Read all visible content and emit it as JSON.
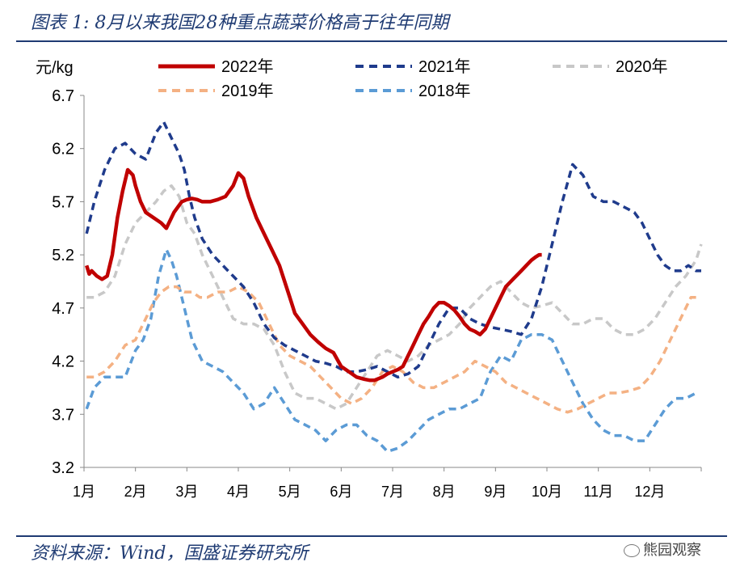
{
  "title": "图表 1:  8月以来我国28种重点蔬菜价格高于往年同期",
  "source": "资料来源：Wind，国盛证券研究所",
  "watermark": "熊园观察",
  "chart_data": {
    "type": "line",
    "ylabel": "元/kg",
    "ylim": [
      3.2,
      6.7
    ],
    "yticks": [
      "6.7",
      "6.2",
      "5.7",
      "5.2",
      "4.7",
      "4.2",
      "3.7",
      "3.2"
    ],
    "xlim": [
      0,
      12
    ],
    "xticks": [
      "1月",
      "2月",
      "3月",
      "4月",
      "5月",
      "6月",
      "7月",
      "8月",
      "9月",
      "10月",
      "11月",
      "12月"
    ],
    "series": [
      {
        "name": "2022年",
        "color": "#c00000",
        "dash": "solid",
        "x": [
          0.05,
          0.1,
          0.15,
          0.25,
          0.35,
          0.45,
          0.55,
          0.65,
          0.75,
          0.85,
          0.95,
          1.0,
          1.1,
          1.2,
          1.35,
          1.5,
          1.6,
          1.75,
          1.9,
          2.0,
          2.1,
          2.2,
          2.3,
          2.45,
          2.6,
          2.75,
          2.9,
          3.0,
          3.1,
          3.2,
          3.35,
          3.5,
          3.65,
          3.8,
          3.9,
          4.0,
          4.1,
          4.25,
          4.4,
          4.55,
          4.7,
          4.85,
          5.0,
          5.15,
          5.3,
          5.45,
          5.55,
          5.65,
          5.8,
          5.9,
          6.0,
          6.1,
          6.2,
          6.3,
          6.4,
          6.5,
          6.6,
          6.7,
          6.8,
          6.9,
          7.0,
          7.1,
          7.2,
          7.3,
          7.4,
          7.5,
          7.6,
          7.7,
          7.8,
          7.9,
          8.0,
          8.1,
          8.2,
          8.3,
          8.4,
          8.5,
          8.6,
          8.7,
          8.78,
          8.85,
          8.9
        ],
        "values": [
          5.1,
          5.02,
          5.05,
          5.0,
          4.97,
          5.0,
          5.2,
          5.55,
          5.8,
          6.0,
          5.95,
          5.85,
          5.7,
          5.6,
          5.55,
          5.5,
          5.45,
          5.6,
          5.7,
          5.72,
          5.73,
          5.72,
          5.7,
          5.7,
          5.72,
          5.75,
          5.85,
          5.97,
          5.92,
          5.75,
          5.55,
          5.4,
          5.25,
          5.1,
          4.95,
          4.8,
          4.65,
          4.55,
          4.45,
          4.38,
          4.32,
          4.28,
          4.15,
          4.1,
          4.05,
          4.03,
          4.02,
          4.02,
          4.05,
          4.08,
          4.1,
          4.12,
          4.15,
          4.25,
          4.35,
          4.45,
          4.55,
          4.62,
          4.7,
          4.75,
          4.75,
          4.72,
          4.68,
          4.62,
          4.55,
          4.5,
          4.48,
          4.45,
          4.5,
          4.6,
          4.7,
          4.8,
          4.9,
          4.95,
          5.0,
          5.05,
          5.1,
          5.15,
          5.18,
          5.2,
          5.2
        ]
      },
      {
        "name": "2021年",
        "color": "#1f3b8c",
        "dash": "dash",
        "x": [
          0.05,
          0.2,
          0.4,
          0.6,
          0.8,
          1.0,
          1.2,
          1.4,
          1.55,
          1.7,
          1.85,
          1.95,
          2.05,
          2.15,
          2.3,
          2.5,
          2.7,
          2.9,
          3.1,
          3.3,
          3.5,
          3.7,
          3.9,
          4.1,
          4.3,
          4.5,
          4.7,
          4.9,
          5.1,
          5.3,
          5.5,
          5.7,
          5.9,
          6.1,
          6.3,
          6.5,
          6.7,
          6.9,
          7.1,
          7.3,
          7.5,
          7.7,
          7.9,
          8.1,
          8.3,
          8.5,
          8.7,
          8.9,
          9.1,
          9.3,
          9.5,
          9.7,
          9.9,
          10.1,
          10.3,
          10.5,
          10.7,
          10.85,
          11.0,
          11.15,
          11.3,
          11.45,
          11.6,
          11.75,
          11.9,
          12.0
        ],
        "values": [
          5.4,
          5.7,
          6.0,
          6.2,
          6.25,
          6.15,
          6.1,
          6.35,
          6.45,
          6.3,
          6.15,
          6.0,
          5.75,
          5.55,
          5.35,
          5.2,
          5.1,
          5.0,
          4.9,
          4.75,
          4.55,
          4.42,
          4.35,
          4.3,
          4.25,
          4.2,
          4.18,
          4.15,
          4.1,
          4.1,
          4.12,
          4.15,
          4.1,
          4.05,
          4.08,
          4.15,
          4.35,
          4.55,
          4.7,
          4.7,
          4.6,
          4.55,
          4.52,
          4.5,
          4.48,
          4.45,
          4.6,
          4.9,
          5.3,
          5.7,
          6.05,
          5.95,
          5.75,
          5.7,
          5.7,
          5.65,
          5.6,
          5.5,
          5.35,
          5.2,
          5.1,
          5.05,
          5.05,
          5.1,
          5.05,
          5.05
        ]
      },
      {
        "name": "2020年",
        "color": "#c8c8c8",
        "dash": "dash",
        "x": [
          0.05,
          0.2,
          0.4,
          0.6,
          0.8,
          1.0,
          1.2,
          1.4,
          1.55,
          1.7,
          1.85,
          2.0,
          2.15,
          2.3,
          2.5,
          2.7,
          2.9,
          3.1,
          3.3,
          3.5,
          3.7,
          3.9,
          4.1,
          4.3,
          4.5,
          4.7,
          4.9,
          5.1,
          5.3,
          5.5,
          5.7,
          5.9,
          6.1,
          6.3,
          6.5,
          6.7,
          6.9,
          7.1,
          7.3,
          7.5,
          7.7,
          7.9,
          8.1,
          8.3,
          8.5,
          8.7,
          8.9,
          9.1,
          9.3,
          9.5,
          9.7,
          9.9,
          10.1,
          10.3,
          10.5,
          10.7,
          10.9,
          11.1,
          11.3,
          11.5,
          11.7,
          11.9,
          12.0
        ],
        "values": [
          4.8,
          4.8,
          4.85,
          5.0,
          5.3,
          5.5,
          5.6,
          5.7,
          5.8,
          5.85,
          5.75,
          5.5,
          5.4,
          5.2,
          5.0,
          4.8,
          4.6,
          4.55,
          4.55,
          4.5,
          4.35,
          4.1,
          3.9,
          3.85,
          3.85,
          3.8,
          3.75,
          3.8,
          3.95,
          4.1,
          4.25,
          4.3,
          4.25,
          4.2,
          4.25,
          4.35,
          4.4,
          4.45,
          4.55,
          4.7,
          4.8,
          4.9,
          4.95,
          4.85,
          4.75,
          4.7,
          4.72,
          4.75,
          4.65,
          4.55,
          4.55,
          4.6,
          4.6,
          4.5,
          4.45,
          4.45,
          4.5,
          4.6,
          4.75,
          4.9,
          5.0,
          5.15,
          5.3
        ]
      },
      {
        "name": "2019年",
        "color": "#f4b183",
        "dash": "dash",
        "x": [
          0.05,
          0.2,
          0.4,
          0.6,
          0.8,
          1.0,
          1.1,
          1.2,
          1.35,
          1.5,
          1.65,
          1.8,
          1.95,
          2.1,
          2.25,
          2.4,
          2.6,
          2.8,
          3.0,
          3.2,
          3.4,
          3.6,
          3.8,
          4.0,
          4.2,
          4.4,
          4.6,
          4.8,
          5.0,
          5.2,
          5.4,
          5.6,
          5.8,
          6.0,
          6.2,
          6.4,
          6.6,
          6.8,
          7.0,
          7.2,
          7.4,
          7.6,
          7.8,
          8.0,
          8.2,
          8.4,
          8.6,
          8.8,
          9.0,
          9.2,
          9.4,
          9.6,
          9.8,
          10.0,
          10.2,
          10.4,
          10.6,
          10.8,
          11.0,
          11.2,
          11.4,
          11.6,
          11.8,
          11.9
        ],
        "values": [
          4.05,
          4.05,
          4.1,
          4.2,
          4.35,
          4.4,
          4.5,
          4.6,
          4.75,
          4.85,
          4.9,
          4.9,
          4.85,
          4.85,
          4.8,
          4.8,
          4.85,
          4.85,
          4.9,
          4.85,
          4.75,
          4.55,
          4.35,
          4.25,
          4.2,
          4.15,
          4.05,
          3.95,
          3.85,
          3.8,
          3.85,
          3.95,
          4.1,
          4.15,
          4.1,
          4.0,
          3.95,
          3.95,
          4.0,
          4.05,
          4.1,
          4.2,
          4.15,
          4.1,
          4.0,
          3.95,
          3.9,
          3.85,
          3.8,
          3.75,
          3.72,
          3.75,
          3.8,
          3.85,
          3.9,
          3.9,
          3.92,
          3.95,
          4.05,
          4.2,
          4.4,
          4.6,
          4.8,
          4.8
        ]
      },
      {
        "name": "2018年",
        "color": "#5b9bd5",
        "dash": "dash",
        "x": [
          0.05,
          0.2,
          0.4,
          0.6,
          0.8,
          1.0,
          1.15,
          1.3,
          1.45,
          1.6,
          1.7,
          1.8,
          1.95,
          2.1,
          2.3,
          2.5,
          2.7,
          2.9,
          3.1,
          3.3,
          3.5,
          3.7,
          3.9,
          4.1,
          4.3,
          4.5,
          4.7,
          4.9,
          5.1,
          5.3,
          5.5,
          5.7,
          5.9,
          6.1,
          6.3,
          6.5,
          6.7,
          6.9,
          7.1,
          7.3,
          7.5,
          7.7,
          7.9,
          8.1,
          8.3,
          8.5,
          8.7,
          8.9,
          9.1,
          9.3,
          9.5,
          9.7,
          9.9,
          10.1,
          10.3,
          10.5,
          10.7,
          10.9,
          11.1,
          11.3,
          11.5,
          11.7,
          11.9
        ],
        "values": [
          3.75,
          3.95,
          4.05,
          4.05,
          4.05,
          4.3,
          4.4,
          4.6,
          5.0,
          5.25,
          5.15,
          5.0,
          4.7,
          4.4,
          4.2,
          4.15,
          4.1,
          4.0,
          3.9,
          3.75,
          3.8,
          3.95,
          3.8,
          3.65,
          3.6,
          3.55,
          3.45,
          3.55,
          3.6,
          3.6,
          3.5,
          3.45,
          3.35,
          3.38,
          3.45,
          3.55,
          3.65,
          3.7,
          3.75,
          3.75,
          3.8,
          3.85,
          4.1,
          4.25,
          4.2,
          4.4,
          4.45,
          4.45,
          4.4,
          4.2,
          4.0,
          3.8,
          3.65,
          3.55,
          3.5,
          3.5,
          3.45,
          3.45,
          3.6,
          3.75,
          3.85,
          3.85,
          3.9
        ]
      }
    ]
  }
}
